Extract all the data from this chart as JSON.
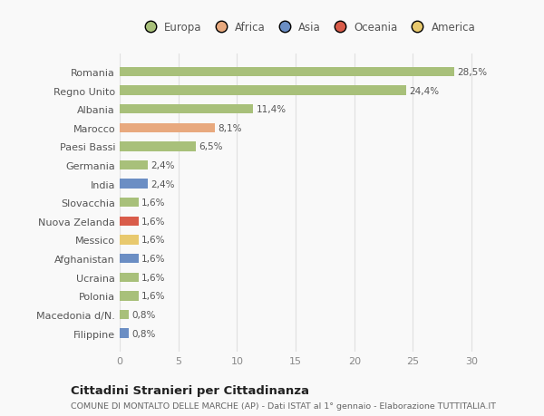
{
  "categories": [
    "Romania",
    "Regno Unito",
    "Albania",
    "Marocco",
    "Paesi Bassi",
    "Germania",
    "India",
    "Slovacchia",
    "Nuova Zelanda",
    "Messico",
    "Afghanistan",
    "Ucraina",
    "Polonia",
    "Macedonia d/N.",
    "Filippine"
  ],
  "values": [
    28.5,
    24.4,
    11.4,
    8.1,
    6.5,
    2.4,
    2.4,
    1.6,
    1.6,
    1.6,
    1.6,
    1.6,
    1.6,
    0.8,
    0.8
  ],
  "bar_colors": [
    "#a8c07a",
    "#a8c07a",
    "#a8c07a",
    "#e8a97e",
    "#a8c07a",
    "#a8c07a",
    "#6b8ec4",
    "#a8c07a",
    "#d95c4a",
    "#e8c96e",
    "#6b8ec4",
    "#a8c07a",
    "#a8c07a",
    "#a8c07a",
    "#6b8ec4"
  ],
  "labels": [
    "28,5%",
    "24,4%",
    "11,4%",
    "8,1%",
    "6,5%",
    "2,4%",
    "2,4%",
    "1,6%",
    "1,6%",
    "1,6%",
    "1,6%",
    "1,6%",
    "1,6%",
    "0,8%",
    "0,8%"
  ],
  "legend_labels": [
    "Europa",
    "Africa",
    "Asia",
    "Oceania",
    "America"
  ],
  "legend_colors": [
    "#a8c07a",
    "#e8a97e",
    "#6b8ec4",
    "#d95c4a",
    "#e8c96e"
  ],
  "xlim": [
    0,
    32
  ],
  "xticks": [
    0,
    5,
    10,
    15,
    20,
    25,
    30
  ],
  "title": "Cittadini Stranieri per Cittadinanza",
  "subtitle": "COMUNE DI MONTALTO DELLE MARCHE (AP) - Dati ISTAT al 1° gennaio - Elaborazione TUTTITALIA.IT",
  "background_color": "#f9f9f9",
  "grid_color": "#e0e0e0"
}
